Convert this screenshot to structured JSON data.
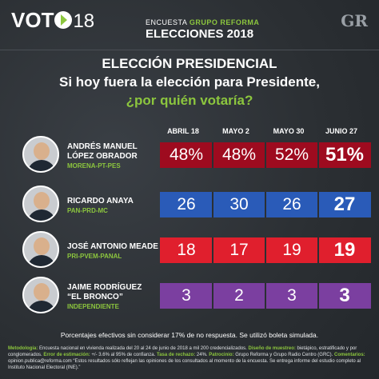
{
  "header": {
    "logo_main": "VOT",
    "logo_num": "18",
    "survey_prefix": "ENCUESTA",
    "survey_brand": "GRUPO REFORMA",
    "elections": "ELECCIONES 2018",
    "gr": "GR"
  },
  "titles": {
    "line1": "ELECCIÓN PRESIDENCIAL",
    "line2": "Si hoy fuera la elección para Presidente,",
    "line3": "¿por quién votaría?"
  },
  "colors": {
    "morena": "#9e0b1f",
    "pan": "#2a5bb8",
    "pri": "#e01f2d",
    "ind": "#7b3fa0",
    "accent": "#8cc63e"
  },
  "chart_data": {
    "type": "table",
    "columns": [
      "ABRIL 18",
      "MAYO 2",
      "MAYO 30",
      "JUNIO 27"
    ],
    "rows": [
      {
        "name1": "ANDRÉS MANUEL",
        "name2": "LÓPEZ OBRADOR",
        "party": "MORENA-PT-PES",
        "labels": [
          "48%",
          "48%",
          "52%",
          "51%"
        ],
        "values": [
          48,
          48,
          52,
          51
        ],
        "color_key": "morena",
        "icon": "lopez-obrador-photo"
      },
      {
        "name1": "RICARDO ANAYA",
        "name2": "",
        "party": "PAN-PRD-MC",
        "labels": [
          "26",
          "30",
          "26",
          "27"
        ],
        "values": [
          26,
          30,
          26,
          27
        ],
        "color_key": "pan",
        "icon": "anaya-photo"
      },
      {
        "name1": "JOSÉ ANTONIO MEADE",
        "name2": "",
        "party": "PRI-PVEM-PANAL",
        "labels": [
          "18",
          "17",
          "19",
          "19"
        ],
        "values": [
          18,
          17,
          19,
          19
        ],
        "color_key": "pri",
        "icon": "meade-photo"
      },
      {
        "name1": "JAIME RODRÍGUEZ",
        "name2": "“EL BRONCO”",
        "party": "INDEPENDIENTE",
        "labels": [
          "3",
          "2",
          "3",
          "3"
        ],
        "values": [
          3,
          2,
          3,
          3
        ],
        "color_key": "ind",
        "icon": "rodriguez-photo"
      }
    ]
  },
  "note": "Porcentajes efectivos sin considerar 17% de no respuesta. Se utilizó boleta simulada.",
  "footer": {
    "m_label": "Metodología:",
    "m_text": "Encuesta nacional en vivienda realizada del 20 al 24 de junio de 2018 a mil 200 credencializados.",
    "d_label": "Diseño de muestreo:",
    "d_text": "bietápico, estratificado y por conglomerados.",
    "e_label": "Error de estimación:",
    "e_text": "+/- 3.6% al 95% de confianza.",
    "r_label": "Tasa de rechazo:",
    "r_text": "24%.",
    "p_label": "Patrocinio:",
    "p_text": "Grupo Reforma y Grupo Radio Centro (GRC).",
    "c_label": "Comentarios:",
    "c_text": "opinion.publica@reforma.com “Estos resultados sólo reflejan las opiniones de los consultados al momento de la encuesta. Se entrega informe del estudio completo al Instituto Nacional Electoral (INE).”"
  }
}
